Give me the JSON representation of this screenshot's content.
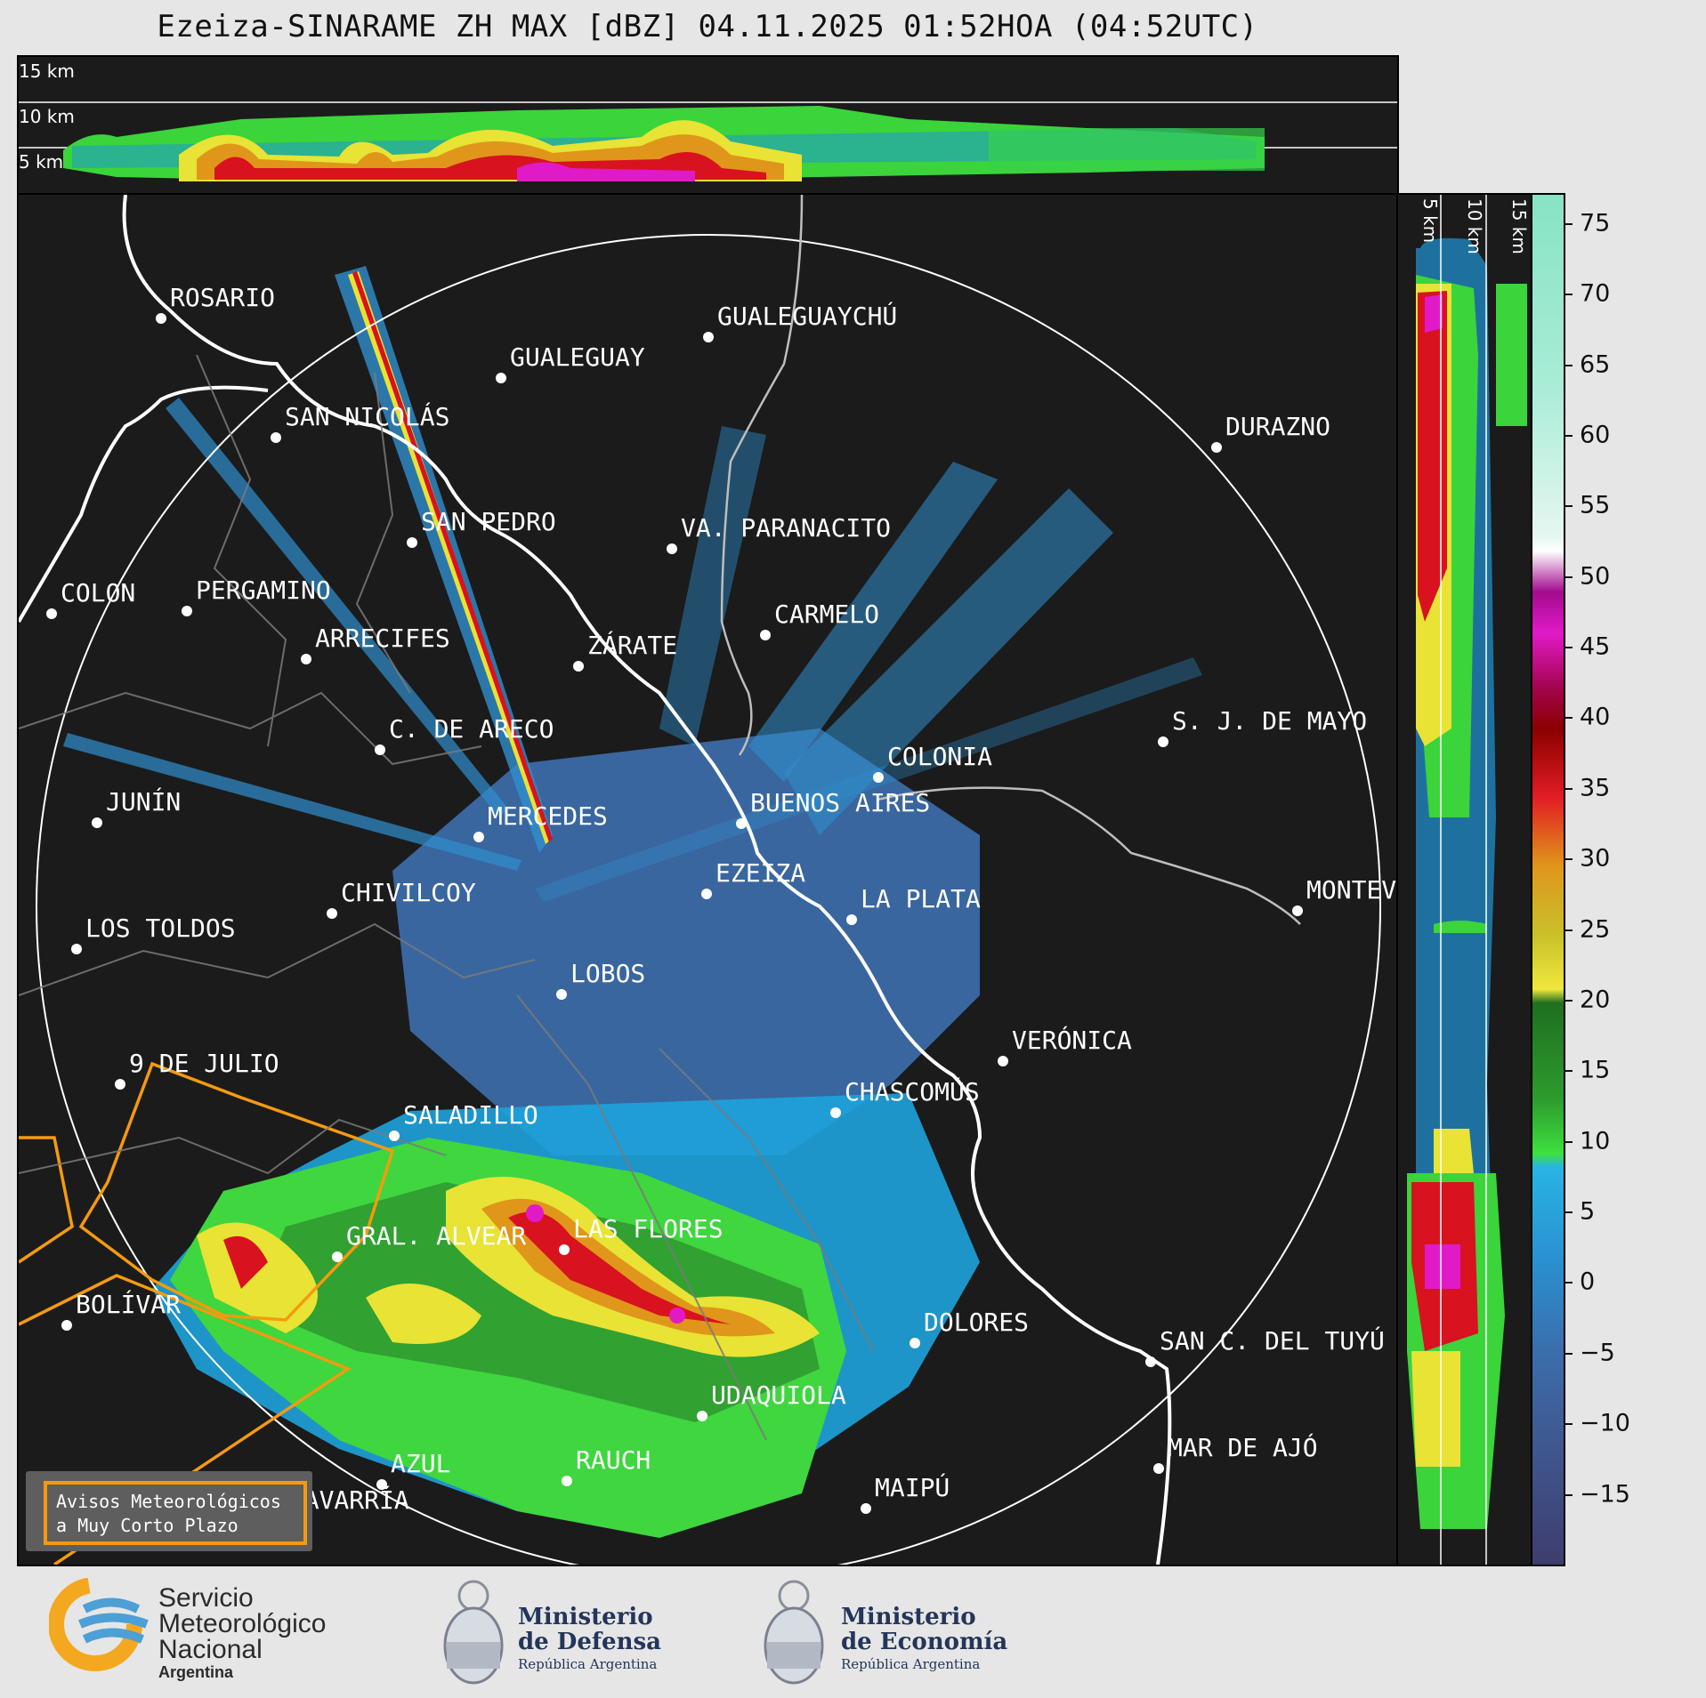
{
  "title": "Ezeiza-SINARAME ZH MAX [dBZ] 04.11.2025 01:52HOA (04:52UTC)",
  "height_labels": {
    "top": [
      "15 km",
      "10 km",
      "5 km"
    ],
    "side": [
      "5 km",
      "10 km",
      "15 km"
    ]
  },
  "cities": [
    {
      "id": "rosario",
      "name": "ROSARIO"
    },
    {
      "id": "gualeguaychu",
      "name": "GUALEGUAYCHÚ"
    },
    {
      "id": "gualeguay",
      "name": "GUALEGUAY"
    },
    {
      "id": "san-nicolas",
      "name": "SAN NICOLÁS"
    },
    {
      "id": "durazno",
      "name": "DURAZNO"
    },
    {
      "id": "san-pedro",
      "name": "SAN PEDRO"
    },
    {
      "id": "villa-paranacito",
      "name": "VA. PARANACITO"
    },
    {
      "id": "colon",
      "name": "COLON"
    },
    {
      "id": "pergamino",
      "name": "PERGAMINO"
    },
    {
      "id": "carmelo",
      "name": "CARMELO"
    },
    {
      "id": "arrecifes",
      "name": "ARRECIFES"
    },
    {
      "id": "zarate",
      "name": "ZÁRATE"
    },
    {
      "id": "s-j-de-mayo",
      "name": "S. J. DE MAYO"
    },
    {
      "id": "c-de-areco",
      "name": "C. DE ARECO"
    },
    {
      "id": "colonia",
      "name": "COLONIA"
    },
    {
      "id": "buenos-aires",
      "name": "BUENOS AIRES"
    },
    {
      "id": "junin",
      "name": "JUNÍN"
    },
    {
      "id": "mercedes",
      "name": "MERCEDES"
    },
    {
      "id": "ezeiza",
      "name": "EZEIZA"
    },
    {
      "id": "montevideo",
      "name": "MONTEVIDEO"
    },
    {
      "id": "chivilcoy",
      "name": "CHIVILCOY"
    },
    {
      "id": "la-plata",
      "name": "LA PLATA"
    },
    {
      "id": "los-toldos",
      "name": "LOS TOLDOS"
    },
    {
      "id": "lobos",
      "name": "LOBOS"
    },
    {
      "id": "veronica",
      "name": "VERÓNICA"
    },
    {
      "id": "9-de-julio",
      "name": "9 DE JULIO"
    },
    {
      "id": "chascomus",
      "name": "CHASCOMÚS"
    },
    {
      "id": "saladillo",
      "name": "SALADILLO"
    },
    {
      "id": "gral-alvear",
      "name": "GRAL. ALVEAR"
    },
    {
      "id": "las-flores",
      "name": "LAS FLORES"
    },
    {
      "id": "bolivar",
      "name": "BOLÍVAR"
    },
    {
      "id": "dolores",
      "name": "DOLORES"
    },
    {
      "id": "san-c-del-tuyu",
      "name": "SAN C. DEL TUYÚ"
    },
    {
      "id": "udaquiola",
      "name": "UDAQUIOLA"
    },
    {
      "id": "mar-de-ajo",
      "name": "MAR DE AJÓ"
    },
    {
      "id": "azul",
      "name": "AZUL"
    },
    {
      "id": "rauch",
      "name": "RAUCH"
    },
    {
      "id": "olavarria",
      "name": "OLAVARRÍA"
    },
    {
      "id": "maipu",
      "name": "MAIPÚ"
    }
  ],
  "legend": {
    "line1": "Avisos Meteorológicos",
    "line2": "a Muy Corto Plazo",
    "border_color": "#f59a0f"
  },
  "colorbar": {
    "unit": "dBZ",
    "min": -20,
    "max": 77,
    "ticks": [
      "75",
      "70",
      "65",
      "60",
      "55",
      "50",
      "45",
      "40",
      "35",
      "30",
      "25",
      "20",
      "15",
      "10",
      "5",
      "0",
      "−5",
      "−10",
      "−15"
    ],
    "tick_values": [
      75,
      70,
      65,
      60,
      55,
      50,
      45,
      40,
      35,
      30,
      25,
      20,
      15,
      10,
      5,
      0,
      -5,
      -10,
      -15
    ]
  },
  "logos": {
    "smn": {
      "line1": "Servicio",
      "line2": "Meteorológico",
      "line3": "Nacional",
      "line4": "Argentina"
    },
    "defensa": {
      "line1": "Ministerio",
      "line2": "de Defensa",
      "line3": "República Argentina"
    },
    "economia": {
      "line1": "Ministerio",
      "line2": "de Economía",
      "line3": "República Argentina"
    }
  }
}
